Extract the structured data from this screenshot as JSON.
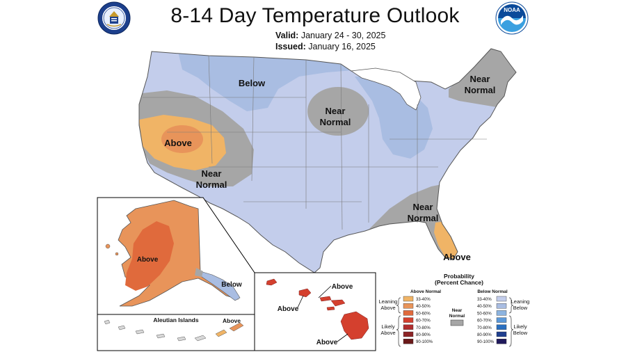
{
  "title": "8-14 Day Temperature Outlook",
  "valid": {
    "label": "Valid:",
    "value": "January 24 - 30, 2025"
  },
  "issued": {
    "label": "Issued:",
    "value": "January 16, 2025"
  },
  "logos": [
    {
      "name": "doc-seal",
      "text": ""
    },
    {
      "name": "noaa-logo",
      "text": "NOAA"
    }
  ],
  "regions": {
    "below": "Below",
    "near_normal_line1": "Near",
    "near_normal_line2": "Normal",
    "above": "Above"
  },
  "inset_labels": {
    "alaska_above": "Above",
    "alaska_below": "Below",
    "aleutian_title": "Aleutian Islands",
    "aleutian_above": "Above",
    "hawaii_above_1": "Above",
    "hawaii_above_2": "Above",
    "hawaii_above_3": "Above"
  },
  "legend": {
    "title_line1": "Probability",
    "title_line2": "(Percent Chance)",
    "above_header": "Above Normal",
    "below_header": "Below Normal",
    "near_normal_line1": "Near",
    "near_normal_line2": "Normal",
    "leaning_above_1": "Leaning",
    "leaning_above_2": "Above",
    "likely_above_1": "Likely",
    "likely_above_2": "Above",
    "leaning_below_1": "Leaning",
    "leaning_below_2": "Below",
    "likely_below_1": "Likely",
    "likely_below_2": "Below",
    "ranges": [
      "33-40%",
      "40-50%",
      "50-60%",
      "60-70%",
      "70-80%",
      "80-90%",
      "90-100%"
    ],
    "above_colors": [
      "#f0b466",
      "#e8945a",
      "#e06a3c",
      "#d4402e",
      "#b02e2e",
      "#8c2426",
      "#6a1a1a"
    ],
    "below_colors": [
      "#c3cdeb",
      "#a9bde2",
      "#8db4e0",
      "#5c99d9",
      "#2a6fbf",
      "#1f3f8f",
      "#201a5c"
    ],
    "near_color": "#a6a6a6"
  },
  "colors": {
    "leaning_below": "#c3cdeb",
    "below_40": "#a9bde2",
    "near_normal": "#a6a6a6",
    "above_33": "#f0b466",
    "above_40": "#e8945a",
    "above_50": "#e06a3c",
    "land_outline": "#555555"
  }
}
